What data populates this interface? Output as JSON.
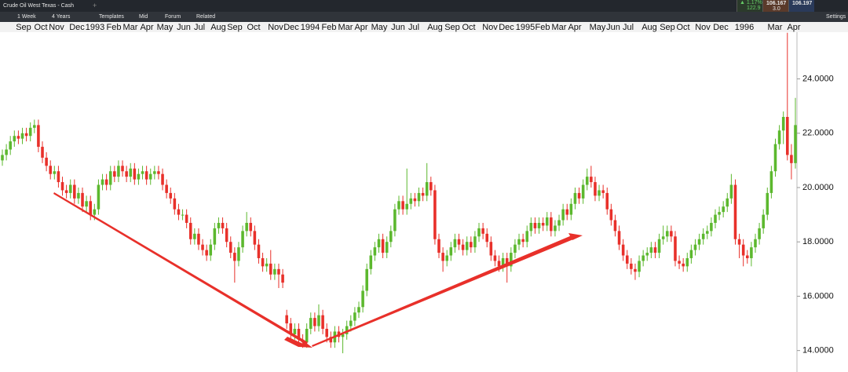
{
  "toolbar": {
    "instrument": "Crude Oil West Texas - Cash",
    "interval": "1 Week",
    "range": "4 Years",
    "buttons": [
      "Templates",
      "Mid",
      "Forum",
      "Related"
    ],
    "change": "1.17%",
    "change_sub": "122.9",
    "sell": "106.167",
    "spread": "3.0",
    "buy": "106.197",
    "settings": "Settings"
  },
  "chart_data": {
    "type": "candlestick",
    "up_color": "#5cb82e",
    "down_color": "#e8302a",
    "xtick_labels": [
      "Sep",
      "Oct",
      "Nov",
      "Dec",
      "1993",
      "Feb",
      "Mar",
      "Apr",
      "May",
      "Jun",
      "Jul",
      "Aug",
      "Sep",
      "Oct",
      "Nov",
      "Dec",
      "1994",
      "Feb",
      "Mar",
      "Apr",
      "May",
      "Jun",
      "Jul",
      "Aug",
      "Sep",
      "Oct",
      "Nov",
      "Dec",
      "1995",
      "Feb",
      "Mar",
      "Apr",
      "May",
      "Jun",
      "Jul",
      "Aug",
      "Sep",
      "Oct",
      "Nov",
      "Dec",
      "1996",
      "Mar",
      "Apr"
    ],
    "ylim": [
      13.21,
      25.72
    ],
    "yticks": [
      {
        "value": 14,
        "label": "14.0000"
      },
      {
        "value": 16,
        "label": "16.0000"
      },
      {
        "value": 18,
        "label": "18.0000"
      },
      {
        "value": 20,
        "label": "20.0000"
      },
      {
        "value": 22,
        "label": "22.0000"
      },
      {
        "value": 24,
        "label": "24.0000"
      }
    ],
    "ohlc": [
      [
        21.0,
        21.4,
        20.8,
        21.2
      ],
      [
        21.2,
        21.6,
        21.0,
        21.4
      ],
      [
        21.4,
        21.9,
        21.2,
        21.7
      ],
      [
        21.7,
        22.1,
        21.5,
        21.9
      ],
      [
        21.9,
        22.1,
        21.6,
        21.8
      ],
      [
        21.8,
        22.2,
        21.6,
        22.0
      ],
      [
        22.0,
        22.2,
        21.7,
        21.9
      ],
      [
        21.9,
        22.4,
        21.7,
        22.2
      ],
      [
        22.2,
        22.5,
        22.0,
        22.3
      ],
      [
        22.3,
        22.5,
        21.3,
        21.5
      ],
      [
        21.5,
        21.7,
        20.9,
        21.1
      ],
      [
        21.1,
        21.3,
        20.6,
        20.8
      ],
      [
        20.8,
        21.0,
        20.3,
        20.5
      ],
      [
        20.5,
        20.8,
        20.3,
        20.6
      ],
      [
        20.6,
        20.8,
        20.0,
        20.2
      ],
      [
        20.2,
        20.4,
        19.7,
        19.9
      ],
      [
        19.9,
        20.1,
        19.6,
        19.8
      ],
      [
        19.8,
        20.3,
        19.6,
        20.1
      ],
      [
        20.1,
        20.3,
        19.4,
        19.6
      ],
      [
        19.6,
        20.0,
        19.4,
        19.8
      ],
      [
        19.8,
        20.0,
        19.1,
        19.3
      ],
      [
        19.3,
        19.7,
        19.1,
        19.5
      ],
      [
        19.5,
        19.7,
        18.8,
        19.0
      ],
      [
        19.0,
        19.4,
        18.8,
        19.2
      ],
      [
        19.2,
        20.3,
        19.0,
        20.1
      ],
      [
        20.1,
        20.5,
        19.9,
        20.3
      ],
      [
        20.3,
        20.5,
        19.9,
        20.1
      ],
      [
        20.1,
        20.8,
        19.9,
        20.6
      ],
      [
        20.6,
        20.8,
        20.2,
        20.4
      ],
      [
        20.4,
        21.0,
        20.2,
        20.8
      ],
      [
        20.8,
        21.0,
        20.4,
        20.6
      ],
      [
        20.6,
        20.8,
        20.2,
        20.4
      ],
      [
        20.4,
        20.9,
        20.2,
        20.7
      ],
      [
        20.7,
        20.9,
        20.1,
        20.3
      ],
      [
        20.3,
        20.7,
        20.1,
        20.5
      ],
      [
        20.5,
        20.8,
        20.3,
        20.6
      ],
      [
        20.6,
        20.8,
        20.1,
        20.3
      ],
      [
        20.3,
        20.7,
        20.1,
        20.5
      ],
      [
        20.5,
        20.8,
        20.3,
        20.6
      ],
      [
        20.6,
        20.8,
        20.3,
        20.5
      ],
      [
        20.5,
        20.7,
        19.9,
        20.1
      ],
      [
        20.1,
        20.3,
        19.6,
        19.8
      ],
      [
        19.8,
        20.0,
        19.4,
        19.6
      ],
      [
        19.6,
        19.8,
        19.0,
        19.2
      ],
      [
        19.2,
        19.4,
        18.8,
        19.0
      ],
      [
        19.0,
        19.2,
        18.8,
        19.0
      ],
      [
        19.0,
        19.2,
        18.5,
        18.7
      ],
      [
        18.7,
        18.9,
        17.9,
        18.1
      ],
      [
        18.1,
        18.5,
        17.9,
        18.3
      ],
      [
        18.3,
        18.5,
        17.7,
        17.9
      ],
      [
        17.9,
        18.1,
        17.5,
        17.7
      ],
      [
        17.7,
        17.9,
        17.3,
        17.5
      ],
      [
        17.5,
        18.1,
        17.3,
        17.9
      ],
      [
        17.9,
        18.7,
        17.7,
        18.5
      ],
      [
        18.5,
        18.9,
        18.3,
        18.7
      ],
      [
        18.7,
        18.9,
        18.3,
        18.5
      ],
      [
        18.5,
        18.7,
        17.8,
        18.0
      ],
      [
        18.0,
        18.2,
        17.4,
        17.6
      ],
      [
        17.6,
        17.8,
        16.5,
        17.3
      ],
      [
        17.3,
        18.0,
        17.1,
        17.8
      ],
      [
        17.8,
        18.6,
        17.6,
        18.4
      ],
      [
        18.4,
        19.1,
        18.2,
        18.7
      ],
      [
        18.7,
        18.9,
        18.2,
        18.4
      ],
      [
        18.4,
        18.6,
        17.7,
        17.9
      ],
      [
        17.9,
        18.1,
        17.2,
        17.4
      ],
      [
        17.4,
        17.6,
        16.9,
        17.1
      ],
      [
        17.1,
        17.4,
        16.9,
        17.2
      ],
      [
        17.2,
        17.7,
        16.6,
        16.8
      ],
      [
        16.8,
        17.2,
        16.6,
        17.0
      ],
      [
        17.0,
        17.2,
        16.3,
        16.8
      ],
      [
        16.8,
        17.0,
        16.3,
        16.5
      ],
      [
        15.3,
        15.5,
        14.8,
        15.0
      ],
      [
        15.0,
        15.2,
        14.4,
        14.6
      ],
      [
        14.6,
        15.0,
        14.4,
        14.8
      ],
      [
        14.8,
        15.0,
        14.2,
        14.4
      ],
      [
        14.4,
        14.6,
        14.1,
        14.3
      ],
      [
        14.3,
        15.0,
        14.1,
        14.8
      ],
      [
        14.8,
        15.4,
        14.6,
        15.2
      ],
      [
        15.2,
        15.4,
        14.7,
        14.9
      ],
      [
        14.9,
        15.7,
        14.7,
        15.3
      ],
      [
        15.3,
        15.5,
        14.6,
        14.8
      ],
      [
        14.8,
        15.0,
        14.3,
        14.5
      ],
      [
        14.5,
        14.7,
        14.1,
        14.3
      ],
      [
        14.3,
        14.9,
        14.1,
        14.7
      ],
      [
        14.7,
        14.9,
        14.3,
        14.5
      ],
      [
        14.5,
        14.8,
        13.9,
        14.6
      ],
      [
        14.6,
        15.1,
        14.4,
        14.9
      ],
      [
        14.9,
        15.3,
        14.7,
        15.1
      ],
      [
        15.1,
        15.6,
        14.9,
        15.4
      ],
      [
        15.4,
        15.8,
        15.2,
        15.6
      ],
      [
        15.6,
        16.4,
        15.4,
        16.2
      ],
      [
        16.2,
        17.2,
        16.0,
        17.0
      ],
      [
        17.0,
        17.7,
        16.8,
        17.5
      ],
      [
        17.5,
        18.0,
        17.3,
        17.8
      ],
      [
        17.8,
        18.3,
        17.6,
        18.1
      ],
      [
        18.1,
        18.3,
        17.4,
        17.6
      ],
      [
        17.6,
        18.2,
        17.4,
        18.0
      ],
      [
        18.0,
        18.6,
        17.8,
        18.4
      ],
      [
        18.4,
        19.4,
        18.2,
        19.2
      ],
      [
        19.2,
        19.7,
        19.0,
        19.5
      ],
      [
        19.5,
        19.7,
        19.0,
        19.2
      ],
      [
        19.2,
        20.7,
        19.0,
        19.4
      ],
      [
        19.4,
        19.8,
        19.2,
        19.6
      ],
      [
        19.6,
        19.8,
        19.3,
        19.5
      ],
      [
        19.5,
        20.0,
        19.3,
        19.8
      ],
      [
        19.8,
        20.0,
        19.5,
        19.7
      ],
      [
        19.7,
        20.9,
        19.5,
        20.2
      ],
      [
        20.2,
        20.4,
        19.7,
        19.9
      ],
      [
        19.9,
        20.1,
        17.9,
        18.1
      ],
      [
        18.1,
        18.3,
        17.4,
        17.6
      ],
      [
        17.6,
        17.8,
        16.9,
        17.3
      ],
      [
        17.3,
        17.7,
        17.1,
        17.5
      ],
      [
        17.5,
        18.0,
        17.3,
        17.8
      ],
      [
        17.8,
        18.3,
        17.6,
        18.1
      ],
      [
        18.1,
        18.3,
        17.7,
        17.9
      ],
      [
        17.9,
        18.1,
        17.5,
        17.7
      ],
      [
        17.7,
        18.2,
        17.5,
        18.0
      ],
      [
        18.0,
        18.2,
        17.6,
        17.8
      ],
      [
        17.8,
        18.4,
        17.6,
        18.2
      ],
      [
        18.2,
        18.7,
        18.0,
        18.5
      ],
      [
        18.5,
        18.7,
        18.1,
        18.3
      ],
      [
        18.3,
        18.5,
        17.8,
        18.0
      ],
      [
        18.0,
        18.2,
        17.3,
        17.5
      ],
      [
        17.5,
        17.7,
        17.1,
        17.3
      ],
      [
        17.3,
        17.5,
        16.9,
        17.1
      ],
      [
        17.1,
        17.6,
        16.9,
        17.4
      ],
      [
        17.4,
        17.6,
        16.5,
        17.1
      ],
      [
        17.1,
        17.8,
        16.9,
        17.6
      ],
      [
        17.6,
        18.1,
        17.4,
        17.9
      ],
      [
        17.9,
        18.3,
        17.7,
        18.1
      ],
      [
        18.1,
        18.3,
        17.8,
        18.0
      ],
      [
        18.0,
        18.6,
        17.8,
        18.4
      ],
      [
        18.4,
        18.9,
        18.2,
        18.7
      ],
      [
        18.7,
        18.9,
        18.3,
        18.5
      ],
      [
        18.5,
        18.9,
        18.3,
        18.7
      ],
      [
        18.7,
        18.9,
        18.4,
        18.6
      ],
      [
        18.6,
        19.1,
        18.4,
        18.9
      ],
      [
        18.9,
        19.1,
        18.2,
        18.4
      ],
      [
        18.4,
        18.8,
        18.2,
        18.6
      ],
      [
        18.6,
        19.0,
        18.4,
        18.8
      ],
      [
        18.8,
        19.4,
        18.6,
        19.2
      ],
      [
        19.2,
        19.4,
        18.8,
        19.0
      ],
      [
        19.0,
        19.6,
        18.8,
        19.4
      ],
      [
        19.4,
        20.0,
        19.2,
        19.8
      ],
      [
        19.8,
        20.0,
        19.4,
        19.6
      ],
      [
        19.6,
        20.3,
        19.4,
        20.1
      ],
      [
        20.1,
        20.7,
        19.9,
        20.4
      ],
      [
        20.4,
        20.8,
        20.0,
        20.2
      ],
      [
        20.2,
        20.4,
        19.5,
        19.7
      ],
      [
        19.7,
        20.1,
        19.5,
        19.9
      ],
      [
        19.9,
        20.1,
        19.6,
        19.8
      ],
      [
        19.8,
        20.0,
        19.0,
        19.2
      ],
      [
        19.2,
        19.4,
        18.6,
        18.8
      ],
      [
        18.8,
        19.0,
        18.2,
        18.4
      ],
      [
        18.4,
        18.6,
        17.7,
        17.9
      ],
      [
        17.9,
        18.1,
        17.3,
        17.5
      ],
      [
        17.5,
        17.7,
        17.0,
        17.2
      ],
      [
        17.2,
        17.4,
        16.8,
        17.0
      ],
      [
        17.0,
        17.2,
        16.6,
        16.9
      ],
      [
        16.9,
        17.5,
        16.7,
        17.3
      ],
      [
        17.3,
        17.7,
        17.1,
        17.5
      ],
      [
        17.5,
        17.8,
        17.3,
        17.6
      ],
      [
        17.6,
        18.0,
        17.4,
        17.8
      ],
      [
        17.8,
        18.0,
        17.4,
        17.6
      ],
      [
        17.6,
        18.3,
        17.4,
        18.1
      ],
      [
        18.1,
        18.6,
        17.9,
        18.2
      ],
      [
        18.2,
        18.6,
        18.0,
        18.4
      ],
      [
        18.4,
        18.6,
        18.0,
        18.2
      ],
      [
        18.2,
        18.4,
        17.1,
        17.3
      ],
      [
        17.3,
        17.5,
        17.0,
        17.2
      ],
      [
        17.2,
        17.4,
        16.9,
        17.1
      ],
      [
        17.1,
        17.6,
        16.9,
        17.4
      ],
      [
        17.4,
        17.9,
        17.2,
        17.7
      ],
      [
        17.7,
        18.1,
        17.5,
        17.9
      ],
      [
        17.9,
        18.3,
        17.7,
        18.1
      ],
      [
        18.1,
        18.5,
        17.9,
        18.3
      ],
      [
        18.3,
        18.6,
        18.1,
        18.4
      ],
      [
        18.4,
        18.9,
        18.2,
        18.7
      ],
      [
        18.7,
        19.2,
        18.5,
        19.0
      ],
      [
        19.0,
        19.3,
        18.8,
        19.1
      ],
      [
        19.1,
        19.5,
        18.9,
        19.3
      ],
      [
        19.3,
        19.8,
        19.1,
        19.6
      ],
      [
        19.6,
        20.5,
        19.4,
        20.1
      ],
      [
        20.1,
        20.3,
        17.9,
        18.1
      ],
      [
        18.1,
        18.3,
        17.4,
        17.9
      ],
      [
        17.9,
        18.1,
        17.1,
        17.5
      ],
      [
        17.5,
        17.7,
        17.2,
        17.4
      ],
      [
        17.4,
        18.0,
        17.1,
        17.8
      ],
      [
        17.8,
        18.3,
        17.6,
        18.1
      ],
      [
        18.1,
        18.7,
        17.9,
        18.5
      ],
      [
        18.5,
        19.2,
        18.3,
        19.0
      ],
      [
        19.0,
        20.0,
        18.8,
        19.8
      ],
      [
        19.8,
        20.8,
        19.6,
        20.6
      ],
      [
        20.6,
        21.8,
        20.4,
        21.6
      ],
      [
        21.6,
        22.3,
        21.4,
        22.1
      ],
      [
        22.1,
        22.8,
        21.6,
        22.6
      ],
      [
        22.6,
        25.7,
        21.0,
        21.2
      ],
      [
        21.2,
        21.6,
        20.3,
        20.9
      ],
      [
        20.9,
        23.3,
        20.7,
        22.3
      ]
    ]
  }
}
